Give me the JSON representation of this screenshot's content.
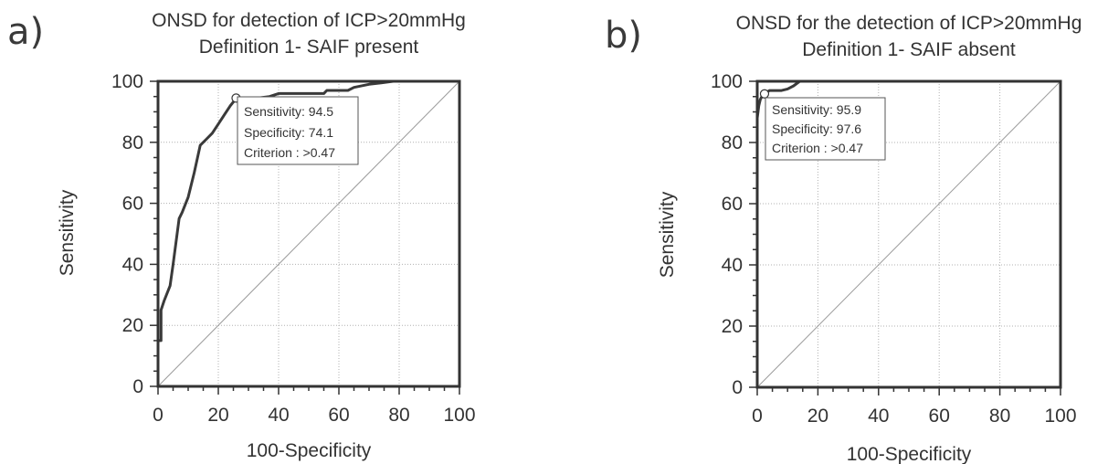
{
  "chart_data": [
    {
      "type": "line",
      "panel_label": "a)",
      "title": "ONSD for detection of ICP>20mmHg",
      "subtitle": "Definition 1- SAIF present",
      "xlabel": "100-Specificity",
      "ylabel": "Sensitivity",
      "xlim": [
        0,
        100
      ],
      "ylim": [
        0,
        100
      ],
      "xticks": [
        0,
        20,
        40,
        60,
        80,
        100
      ],
      "yticks": [
        0,
        20,
        40,
        60,
        80,
        100
      ],
      "grid": true,
      "series": [
        {
          "color": "#3a3a3a",
          "x": [
            0,
            0,
            1,
            1,
            2,
            4,
            5,
            7,
            8,
            10,
            12,
            14,
            16,
            18,
            20,
            22,
            24,
            26,
            30,
            33,
            37,
            40,
            45,
            50,
            55,
            56,
            60,
            63,
            65,
            70,
            74,
            78,
            80,
            100
          ],
          "y": [
            0,
            15,
            15,
            25,
            28,
            33,
            40,
            55,
            57,
            62,
            70,
            79,
            81,
            83,
            86,
            89,
            92,
            94.5,
            94.5,
            94.5,
            95,
            96,
            96,
            96,
            96,
            97,
            97,
            97,
            98,
            99,
            99.5,
            100,
            100,
            100
          ]
        },
        {
          "color": "#9a9a9a",
          "x": [
            0,
            100
          ],
          "y": [
            0,
            100
          ]
        }
      ],
      "marker": {
        "x": 25.9,
        "y": 94.5
      },
      "annotation": [
        "Sensitivity: 94.5",
        "Specificity: 74.1",
        "Criterion : >0.47"
      ]
    },
    {
      "type": "line",
      "panel_label": "b)",
      "title": "ONSD for the detection of ICP>20mmHg",
      "subtitle": "Definition 1- SAIF absent",
      "xlabel": "100-Specificity",
      "ylabel": "Sensitivity",
      "xlim": [
        0,
        100
      ],
      "ylim": [
        0,
        100
      ],
      "xticks": [
        0,
        20,
        40,
        60,
        80,
        100
      ],
      "yticks": [
        0,
        20,
        40,
        60,
        80,
        100
      ],
      "grid": true,
      "series": [
        {
          "color": "#3a3a3a",
          "x": [
            0,
            0,
            0.5,
            1,
            1.5,
            2.4,
            4,
            8,
            10,
            12,
            14,
            100
          ],
          "y": [
            0,
            88,
            92,
            94,
            95,
            95.9,
            97,
            97,
            97.5,
            98.5,
            100,
            100
          ]
        },
        {
          "color": "#9a9a9a",
          "x": [
            0,
            100
          ],
          "y": [
            0,
            100
          ]
        }
      ],
      "marker": {
        "x": 2.4,
        "y": 95.9
      },
      "annotation": [
        "Sensitivity: 95.9",
        "Specificity: 97.6",
        "Criterion : >0.47"
      ]
    }
  ]
}
